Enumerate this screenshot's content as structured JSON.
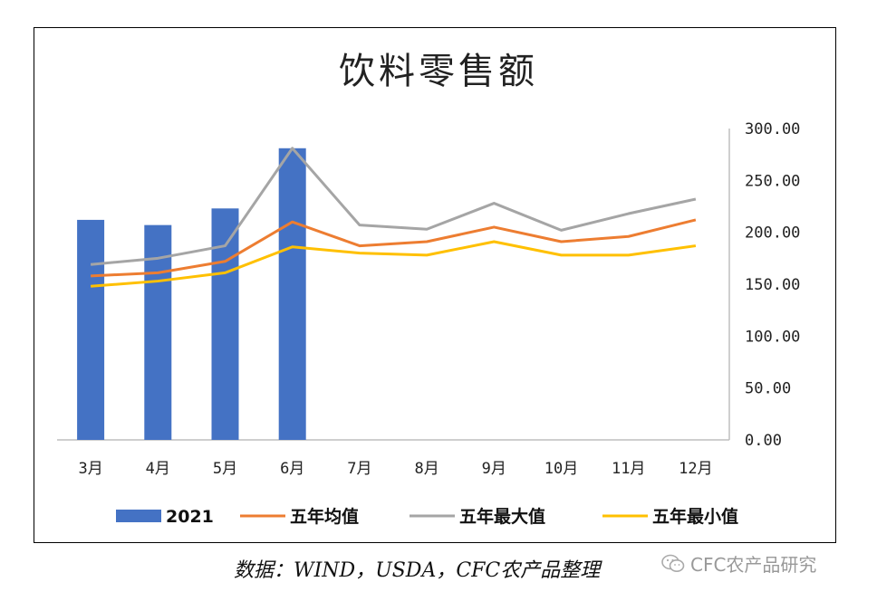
{
  "chart_data": {
    "type": "bar",
    "title": "饮料零售额",
    "categories": [
      "3月",
      "4月",
      "5月",
      "6月",
      "7月",
      "8月",
      "9月",
      "10月",
      "11月",
      "12月"
    ],
    "series": [
      {
        "name": "2021",
        "type": "bar",
        "color": "#4472C4",
        "values": [
          212,
          207,
          223,
          281,
          null,
          null,
          null,
          null,
          null,
          null
        ]
      },
      {
        "name": "五年均值",
        "type": "line",
        "color": "#ED7D31",
        "values": [
          158,
          161,
          172,
          210,
          187,
          191,
          205,
          191,
          196,
          212
        ]
      },
      {
        "name": "五年最大值",
        "type": "line",
        "color": "#A5A5A5",
        "values": [
          169,
          175,
          187,
          281,
          207,
          203,
          228,
          202,
          218,
          232
        ]
      },
      {
        "name": "五年最小值",
        "type": "line",
        "color": "#FFC000",
        "values": [
          148,
          153,
          161,
          186,
          180,
          178,
          191,
          178,
          178,
          187
        ]
      }
    ],
    "y_axis": {
      "position": "right",
      "min": 0,
      "max": 300,
      "ticks": [
        "0.00",
        "50.00",
        "100.00",
        "150.00",
        "200.00",
        "250.00",
        "300.00"
      ]
    },
    "legend": {
      "position": "bottom"
    },
    "grid": false
  },
  "source": "数据：WIND，USDA，CFC农产品整理",
  "watermark": {
    "text": "CFC农产品研究",
    "icon": "wechat-icon"
  }
}
